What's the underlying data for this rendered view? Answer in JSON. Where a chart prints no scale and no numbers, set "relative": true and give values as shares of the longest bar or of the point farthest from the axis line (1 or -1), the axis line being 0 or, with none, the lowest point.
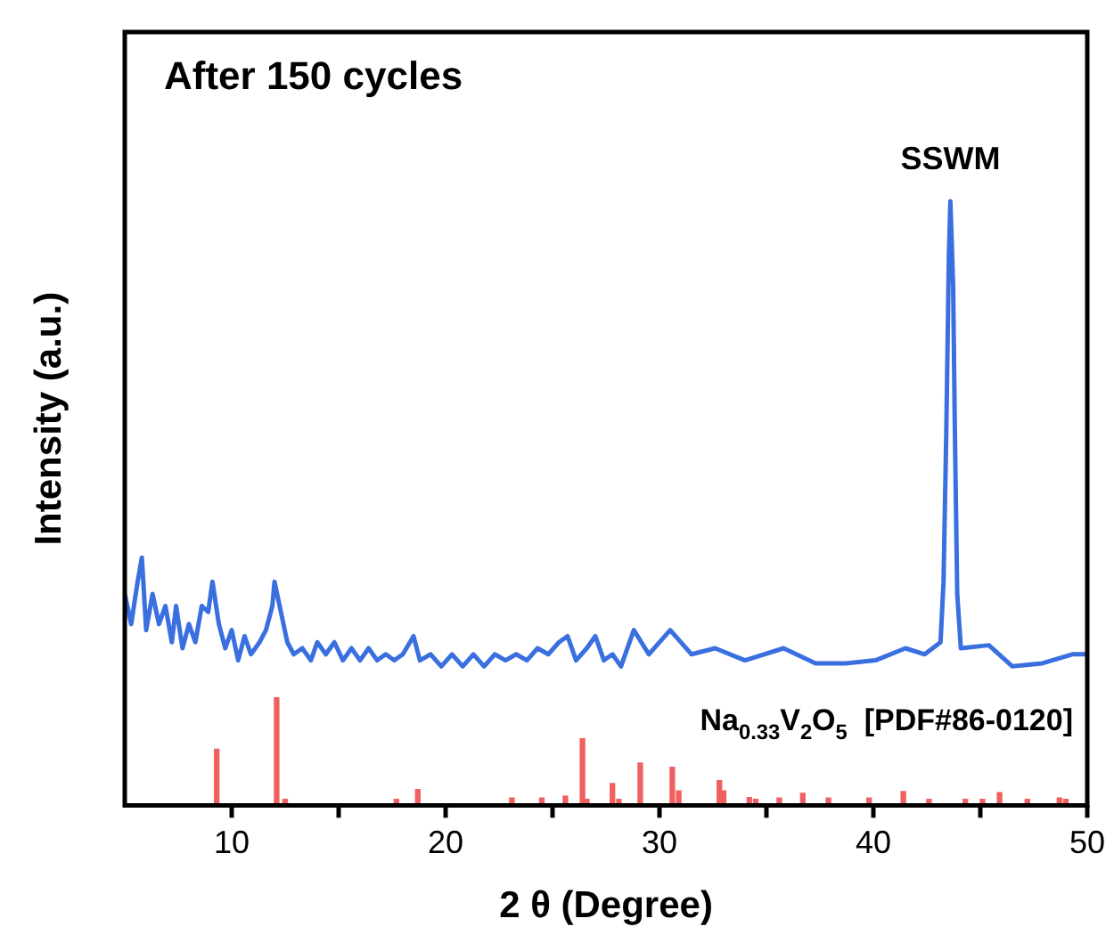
{
  "chart_data": {
    "type": "line",
    "title": "After 150 cycles",
    "xlabel": "2 θ (Degree)",
    "ylabel": "Intensity (a.u.)",
    "relative": true,
    "xlim": [
      5,
      50
    ],
    "xticks": [
      10,
      {
        "value": 15,
        "label": null
      },
      20,
      {
        "value": 25,
        "label": null
      },
      30,
      {
        "value": 35,
        "label": null
      },
      40,
      {
        "value": 45,
        "label": null
      },
      50
    ],
    "annotations": [
      "SSWM"
    ],
    "grid": false,
    "legend": false,
    "series": [
      {
        "color": "#3a6fe0",
        "x": [
          5.0,
          5.3,
          5.6,
          5.8,
          6.0,
          6.3,
          6.6,
          6.9,
          7.2,
          7.4,
          7.7,
          8.0,
          8.3,
          8.6,
          8.9,
          9.1,
          9.4,
          9.7,
          10.0,
          10.3,
          10.6,
          10.9,
          11.3,
          11.6,
          11.9,
          12.0,
          12.3,
          12.6,
          12.9,
          13.3,
          13.7,
          14.0,
          14.4,
          14.8,
          15.2,
          15.6,
          16.0,
          16.4,
          16.8,
          17.2,
          17.6,
          18.0,
          18.5,
          18.8,
          19.3,
          19.8,
          20.3,
          20.8,
          21.3,
          21.8,
          22.3,
          22.8,
          23.3,
          23.8,
          24.3,
          24.8,
          25.3,
          25.7,
          26.1,
          26.6,
          27.0,
          27.4,
          27.8,
          28.2,
          28.8,
          29.5,
          30.5,
          31.5,
          32.6,
          34.0,
          35.8,
          37.3,
          38.7,
          40.1,
          41.5,
          42.4,
          43.14,
          43.28,
          43.41,
          43.53,
          43.6,
          43.73,
          43.81,
          43.92,
          44.09,
          45.4,
          46.5,
          47.9,
          49.3,
          50.0
        ],
        "values": [
          0.35,
          0.3,
          0.37,
          0.41,
          0.29,
          0.35,
          0.3,
          0.33,
          0.27,
          0.33,
          0.26,
          0.3,
          0.27,
          0.33,
          0.32,
          0.37,
          0.3,
          0.26,
          0.29,
          0.24,
          0.28,
          0.25,
          0.27,
          0.29,
          0.33,
          0.37,
          0.32,
          0.27,
          0.25,
          0.26,
          0.24,
          0.27,
          0.25,
          0.27,
          0.24,
          0.26,
          0.24,
          0.26,
          0.24,
          0.25,
          0.24,
          0.25,
          0.28,
          0.24,
          0.25,
          0.23,
          0.25,
          0.23,
          0.25,
          0.23,
          0.25,
          0.24,
          0.25,
          0.24,
          0.26,
          0.25,
          0.27,
          0.28,
          0.24,
          0.26,
          0.28,
          0.24,
          0.25,
          0.23,
          0.29,
          0.25,
          0.29,
          0.25,
          0.26,
          0.24,
          0.26,
          0.235,
          0.235,
          0.24,
          0.26,
          0.25,
          0.27,
          0.37,
          0.62,
          0.91,
          1.0,
          0.86,
          0.62,
          0.35,
          0.26,
          0.265,
          0.23,
          0.235,
          0.25,
          0.25
        ]
      },
      {
        "type": "bar",
        "name": "Na$_{0.33}$V$_{2}$O$_{5}$  [PDF#86-0120]",
        "color": "#f06060",
        "x": [
          9.3,
          12.1,
          12.5,
          17.7,
          18.7,
          23.1,
          24.5,
          25.6,
          26.4,
          26.6,
          27.8,
          28.1,
          29.1,
          30.6,
          30.9,
          32.8,
          33.0,
          34.2,
          34.5,
          35.6,
          36.7,
          37.9,
          39.8,
          41.4,
          42.6,
          44.3,
          45.1,
          45.9,
          47.2,
          48.7,
          49.0
        ],
        "values": [
          0.093,
          0.178,
          0.01,
          0.01,
          0.026,
          0.012,
          0.012,
          0.015,
          0.11,
          0.01,
          0.036,
          0.01,
          0.07,
          0.063,
          0.024,
          0.041,
          0.024,
          0.013,
          0.01,
          0.012,
          0.02,
          0.012,
          0.012,
          0.023,
          0.01,
          0.01,
          0.01,
          0.021,
          0.01,
          0.012,
          0.01
        ]
      }
    ]
  }
}
